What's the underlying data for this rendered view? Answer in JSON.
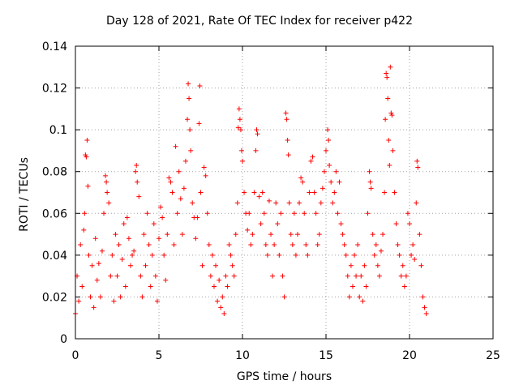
{
  "chart_data": {
    "type": "scatter",
    "title": "Day 128 of 2021, Rate Of TEC Index for receiver p422",
    "xlabel": "GPS time / hours",
    "ylabel": "ROTI / TECUs",
    "xlim": [
      0,
      25
    ],
    "ylim": [
      0,
      0.14
    ],
    "x_ticks": [
      0,
      5,
      10,
      15,
      20,
      25
    ],
    "x_tick_labels": [
      "0",
      "5",
      "10",
      "15",
      "20",
      "25"
    ],
    "y_ticks": [
      0,
      0.02,
      0.04,
      0.06,
      0.08,
      0.1,
      0.12,
      0.14
    ],
    "y_tick_labels": [
      "0",
      "0.02",
      "0.04",
      "0.06",
      "0.08",
      "0.1",
      "0.12",
      "0.14"
    ],
    "grid": true,
    "marker": "plus",
    "series": [
      {
        "color": "#ff0000",
        "points": [
          [
            0.0,
            0.012
          ],
          [
            0.1,
            0.03
          ],
          [
            0.2,
            0.018
          ],
          [
            0.3,
            0.045
          ],
          [
            0.4,
            0.025
          ],
          [
            0.5,
            0.052
          ],
          [
            0.55,
            0.06
          ],
          [
            0.6,
            0.088
          ],
          [
            0.65,
            0.087
          ],
          [
            0.7,
            0.095
          ],
          [
            0.75,
            0.073
          ],
          [
            0.8,
            0.04
          ],
          [
            0.9,
            0.02
          ],
          [
            1.0,
            0.035
          ],
          [
            1.1,
            0.015
          ],
          [
            1.2,
            0.048
          ],
          [
            1.3,
            0.028
          ],
          [
            1.4,
            0.036
          ],
          [
            1.5,
            0.02
          ],
          [
            1.6,
            0.042
          ],
          [
            1.7,
            0.06
          ],
          [
            1.8,
            0.078
          ],
          [
            1.85,
            0.075
          ],
          [
            1.9,
            0.07
          ],
          [
            2.0,
            0.065
          ],
          [
            2.1,
            0.03
          ],
          [
            2.2,
            0.04
          ],
          [
            2.3,
            0.018
          ],
          [
            2.4,
            0.05
          ],
          [
            2.5,
            0.03
          ],
          [
            2.6,
            0.045
          ],
          [
            2.7,
            0.02
          ],
          [
            2.8,
            0.038
          ],
          [
            2.9,
            0.055
          ],
          [
            3.0,
            0.025
          ],
          [
            3.1,
            0.058
          ],
          [
            3.2,
            0.048
          ],
          [
            3.3,
            0.035
          ],
          [
            3.4,
            0.04
          ],
          [
            3.5,
            0.042
          ],
          [
            3.6,
            0.08
          ],
          [
            3.65,
            0.083
          ],
          [
            3.7,
            0.075
          ],
          [
            3.8,
            0.068
          ],
          [
            3.9,
            0.03
          ],
          [
            4.0,
            0.02
          ],
          [
            4.1,
            0.05
          ],
          [
            4.2,
            0.035
          ],
          [
            4.3,
            0.06
          ],
          [
            4.4,
            0.045
          ],
          [
            4.5,
            0.025
          ],
          [
            4.6,
            0.04
          ],
          [
            4.7,
            0.055
          ],
          [
            4.8,
            0.03
          ],
          [
            4.9,
            0.018
          ],
          [
            5.0,
            0.048
          ],
          [
            5.1,
            0.063
          ],
          [
            5.2,
            0.058
          ],
          [
            5.3,
            0.04
          ],
          [
            5.4,
            0.028
          ],
          [
            5.5,
            0.05
          ],
          [
            5.6,
            0.077
          ],
          [
            5.7,
            0.075
          ],
          [
            5.8,
            0.07
          ],
          [
            5.9,
            0.045
          ],
          [
            6.0,
            0.092
          ],
          [
            6.1,
            0.06
          ],
          [
            6.2,
            0.08
          ],
          [
            6.3,
            0.067
          ],
          [
            6.4,
            0.05
          ],
          [
            6.5,
            0.072
          ],
          [
            6.6,
            0.085
          ],
          [
            6.7,
            0.105
          ],
          [
            6.75,
            0.122
          ],
          [
            6.8,
            0.115
          ],
          [
            6.85,
            0.1
          ],
          [
            6.9,
            0.09
          ],
          [
            7.0,
            0.065
          ],
          [
            7.1,
            0.058
          ],
          [
            7.2,
            0.048
          ],
          [
            7.3,
            0.058
          ],
          [
            7.4,
            0.103
          ],
          [
            7.45,
            0.121
          ],
          [
            7.5,
            0.07
          ],
          [
            7.6,
            0.035
          ],
          [
            7.7,
            0.082
          ],
          [
            7.8,
            0.078
          ],
          [
            7.9,
            0.06
          ],
          [
            8.0,
            0.045
          ],
          [
            8.1,
            0.03
          ],
          [
            8.2,
            0.04
          ],
          [
            8.3,
            0.025
          ],
          [
            8.4,
            0.035
          ],
          [
            8.5,
            0.018
          ],
          [
            8.6,
            0.028
          ],
          [
            8.7,
            0.015
          ],
          [
            8.8,
            0.02
          ],
          [
            8.9,
            0.012
          ],
          [
            9.0,
            0.03
          ],
          [
            9.1,
            0.025
          ],
          [
            9.2,
            0.045
          ],
          [
            9.3,
            0.04
          ],
          [
            9.4,
            0.035
          ],
          [
            9.5,
            0.03
          ],
          [
            9.6,
            0.05
          ],
          [
            9.7,
            0.065
          ],
          [
            9.75,
            0.101
          ],
          [
            9.8,
            0.11
          ],
          [
            9.85,
            0.105
          ],
          [
            9.9,
            0.1
          ],
          [
            9.95,
            0.09
          ],
          [
            10.0,
            0.085
          ],
          [
            10.1,
            0.07
          ],
          [
            10.2,
            0.06
          ],
          [
            10.3,
            0.052
          ],
          [
            10.4,
            0.06
          ],
          [
            10.5,
            0.045
          ],
          [
            10.6,
            0.05
          ],
          [
            10.7,
            0.07
          ],
          [
            10.8,
            0.09
          ],
          [
            10.85,
            0.1
          ],
          [
            10.9,
            0.098
          ],
          [
            11.0,
            0.068
          ],
          [
            11.1,
            0.055
          ],
          [
            11.2,
            0.07
          ],
          [
            11.3,
            0.06
          ],
          [
            11.4,
            0.045
          ],
          [
            11.5,
            0.04
          ],
          [
            11.6,
            0.066
          ],
          [
            11.7,
            0.05
          ],
          [
            11.8,
            0.03
          ],
          [
            11.9,
            0.045
          ],
          [
            12.0,
            0.065
          ],
          [
            12.1,
            0.055
          ],
          [
            12.2,
            0.04
          ],
          [
            12.3,
            0.06
          ],
          [
            12.4,
            0.03
          ],
          [
            12.5,
            0.02
          ],
          [
            12.6,
            0.108
          ],
          [
            12.65,
            0.105
          ],
          [
            12.7,
            0.095
          ],
          [
            12.75,
            0.088
          ],
          [
            12.8,
            0.065
          ],
          [
            12.9,
            0.05
          ],
          [
            13.0,
            0.045
          ],
          [
            13.1,
            0.06
          ],
          [
            13.2,
            0.04
          ],
          [
            13.3,
            0.05
          ],
          [
            13.4,
            0.065
          ],
          [
            13.5,
            0.077
          ],
          [
            13.6,
            0.075
          ],
          [
            13.7,
            0.06
          ],
          [
            13.8,
            0.045
          ],
          [
            13.9,
            0.04
          ],
          [
            14.0,
            0.07
          ],
          [
            14.1,
            0.085
          ],
          [
            14.2,
            0.087
          ],
          [
            14.3,
            0.07
          ],
          [
            14.4,
            0.06
          ],
          [
            14.5,
            0.045
          ],
          [
            14.6,
            0.05
          ],
          [
            14.7,
            0.065
          ],
          [
            14.8,
            0.072
          ],
          [
            14.9,
            0.08
          ],
          [
            15.0,
            0.09
          ],
          [
            15.1,
            0.1
          ],
          [
            15.15,
            0.095
          ],
          [
            15.2,
            0.083
          ],
          [
            15.3,
            0.075
          ],
          [
            15.4,
            0.065
          ],
          [
            15.5,
            0.07
          ],
          [
            15.6,
            0.08
          ],
          [
            15.7,
            0.06
          ],
          [
            15.8,
            0.075
          ],
          [
            15.9,
            0.055
          ],
          [
            16.0,
            0.05
          ],
          [
            16.1,
            0.045
          ],
          [
            16.2,
            0.04
          ],
          [
            16.3,
            0.03
          ],
          [
            16.4,
            0.02
          ],
          [
            16.5,
            0.035
          ],
          [
            16.6,
            0.025
          ],
          [
            16.7,
            0.04
          ],
          [
            16.8,
            0.03
          ],
          [
            16.9,
            0.045
          ],
          [
            17.0,
            0.02
          ],
          [
            17.1,
            0.03
          ],
          [
            17.2,
            0.018
          ],
          [
            17.3,
            0.035
          ],
          [
            17.4,
            0.025
          ],
          [
            17.5,
            0.06
          ],
          [
            17.6,
            0.08
          ],
          [
            17.65,
            0.075
          ],
          [
            17.7,
            0.072
          ],
          [
            17.8,
            0.05
          ],
          [
            17.9,
            0.04
          ],
          [
            18.0,
            0.045
          ],
          [
            18.1,
            0.035
          ],
          [
            18.2,
            0.03
          ],
          [
            18.3,
            0.042
          ],
          [
            18.4,
            0.05
          ],
          [
            18.5,
            0.07
          ],
          [
            18.55,
            0.105
          ],
          [
            18.6,
            0.127
          ],
          [
            18.65,
            0.125
          ],
          [
            18.7,
            0.115
          ],
          [
            18.75,
            0.095
          ],
          [
            18.8,
            0.083
          ],
          [
            18.85,
            0.13
          ],
          [
            18.9,
            0.108
          ],
          [
            18.95,
            0.107
          ],
          [
            19.0,
            0.09
          ],
          [
            19.1,
            0.07
          ],
          [
            19.2,
            0.055
          ],
          [
            19.3,
            0.045
          ],
          [
            19.4,
            0.04
          ],
          [
            19.5,
            0.03
          ],
          [
            19.6,
            0.035
          ],
          [
            19.7,
            0.025
          ],
          [
            19.8,
            0.03
          ],
          [
            19.9,
            0.06
          ],
          [
            20.0,
            0.055
          ],
          [
            20.1,
            0.04
          ],
          [
            20.2,
            0.045
          ],
          [
            20.3,
            0.038
          ],
          [
            20.4,
            0.065
          ],
          [
            20.45,
            0.085
          ],
          [
            20.5,
            0.082
          ],
          [
            20.6,
            0.05
          ],
          [
            20.7,
            0.035
          ],
          [
            20.8,
            0.02
          ],
          [
            20.9,
            0.015
          ],
          [
            21.0,
            0.012
          ]
        ]
      }
    ]
  }
}
